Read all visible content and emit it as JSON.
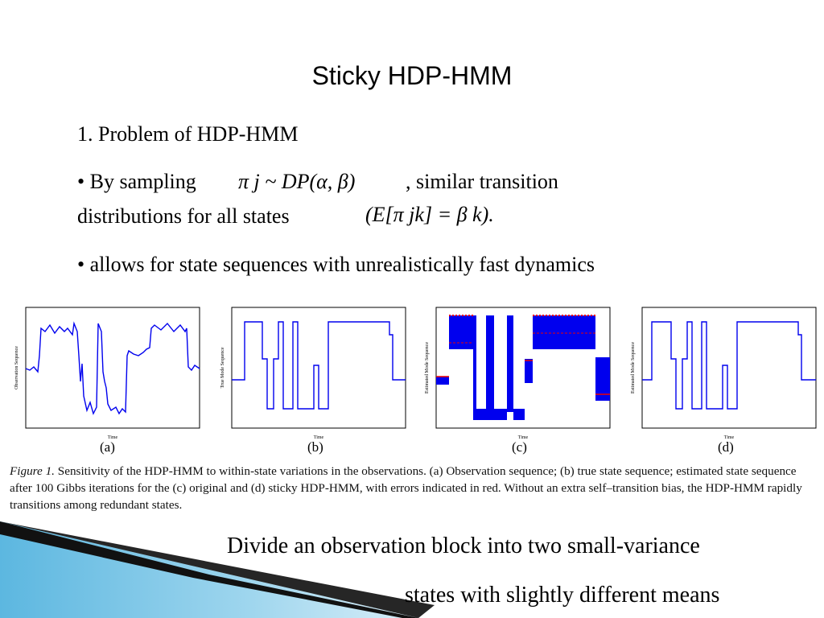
{
  "slide": {
    "title": "Sticky HDP-HMM",
    "section_heading": "1. Problem of HDP-HMM",
    "bullet1_pre": "• By sampling",
    "bullet1_math": "π j ~ DP(α, β)",
    "bullet1_post": ", similar transition",
    "bullet1_line2": "distributions for all states",
    "bullet1_math2": "(E[π jk] = β k).",
    "bullet2": "• allows for state sequences with unrealistically fast dynamics",
    "note_line1": "Divide an observation block into two small-variance",
    "note_line2": "states with slightly different means"
  },
  "figure": {
    "panels": [
      {
        "label": "(a)",
        "ylabel": "Observation Sequence",
        "xlabel": "Time"
      },
      {
        "label": "(b)",
        "ylabel": "True Mode Sequence",
        "xlabel": "Time"
      },
      {
        "label": "(c)",
        "ylabel": "Estimated Mode Sequence",
        "xlabel": "Time"
      },
      {
        "label": "(d)",
        "ylabel": "Estimated Mode Sequence",
        "xlabel": "Time"
      }
    ],
    "caption_label": "Figure 1.",
    "caption_text": "Sensitivity of the HDP-HMM to within-state variations in the observations. (a) Observation sequence; (b) true state sequence; estimated state sequence after 100 Gibbs iterations for the (c) original and (d) sticky HDP-HMM, with errors indicated in red. Without an extra self–transition bias, the HDP-HMM rapidly transitions among redundant states.",
    "colors": {
      "line": "#0000ee",
      "error": "#ee0000",
      "axis": "#000000"
    }
  }
}
